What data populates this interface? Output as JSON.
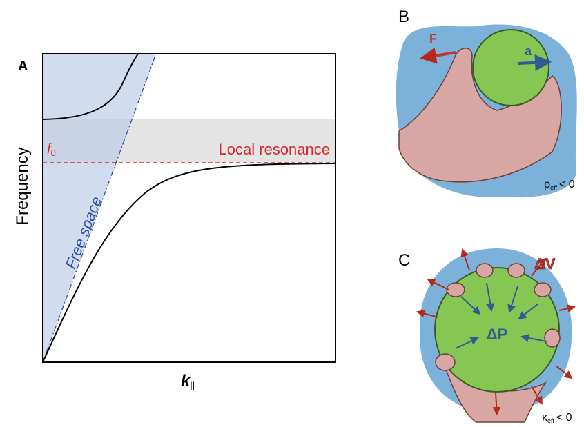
{
  "panels": [
    {
      "label": "A",
      "y_axis_label": "Frequency",
      "x_axis_symbol": "k",
      "x_axis_subscript": "||",
      "resonance_symbol": "f",
      "resonance_subscript": "0",
      "resonance_label": "Local resonance",
      "light_line_label": "Free space"
    },
    {
      "label": "B",
      "force_label": "F",
      "acceleration_label": "a",
      "condition_symbol": "ρ",
      "condition_subscript": "eff",
      "condition_relation": "< 0"
    },
    {
      "label": "C",
      "volume_label": "ΔV",
      "pressure_label": "ΔP",
      "condition_symbol": "κ",
      "condition_subscript": "eff",
      "condition_relation": "< 0"
    }
  ]
}
